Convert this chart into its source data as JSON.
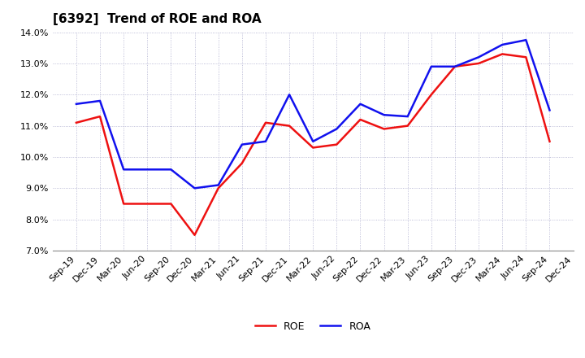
{
  "title": "[6392]  Trend of ROE and ROA",
  "labels": [
    "Sep-19",
    "Dec-19",
    "Mar-20",
    "Jun-20",
    "Sep-20",
    "Dec-20",
    "Mar-21",
    "Jun-21",
    "Sep-21",
    "Dec-21",
    "Mar-22",
    "Jun-22",
    "Sep-22",
    "Dec-22",
    "Mar-23",
    "Jun-23",
    "Sep-23",
    "Dec-23",
    "Mar-24",
    "Jun-24",
    "Sep-24",
    "Dec-24"
  ],
  "roe": [
    11.1,
    11.3,
    8.5,
    8.5,
    8.5,
    7.5,
    9.0,
    9.8,
    11.1,
    11.0,
    10.3,
    10.4,
    11.2,
    10.9,
    11.0,
    12.0,
    12.9,
    13.0,
    13.3,
    13.2,
    10.5,
    null
  ],
  "roa": [
    11.7,
    11.8,
    9.6,
    9.6,
    9.6,
    9.0,
    9.1,
    10.4,
    10.5,
    12.0,
    10.5,
    10.9,
    11.7,
    11.35,
    11.3,
    12.9,
    12.9,
    13.2,
    13.6,
    13.75,
    11.5,
    null
  ],
  "roe_color": "#ee1111",
  "roa_color": "#1111ee",
  "ylim": [
    0.07,
    0.14
  ],
  "yticks": [
    0.07,
    0.08,
    0.09,
    0.1,
    0.11,
    0.12,
    0.13,
    0.14
  ],
  "background_color": "#ffffff",
  "grid_color": "#aaaacc",
  "title_fontsize": 11,
  "tick_fontsize": 8,
  "linewidth": 1.8,
  "legend_fontsize": 9
}
